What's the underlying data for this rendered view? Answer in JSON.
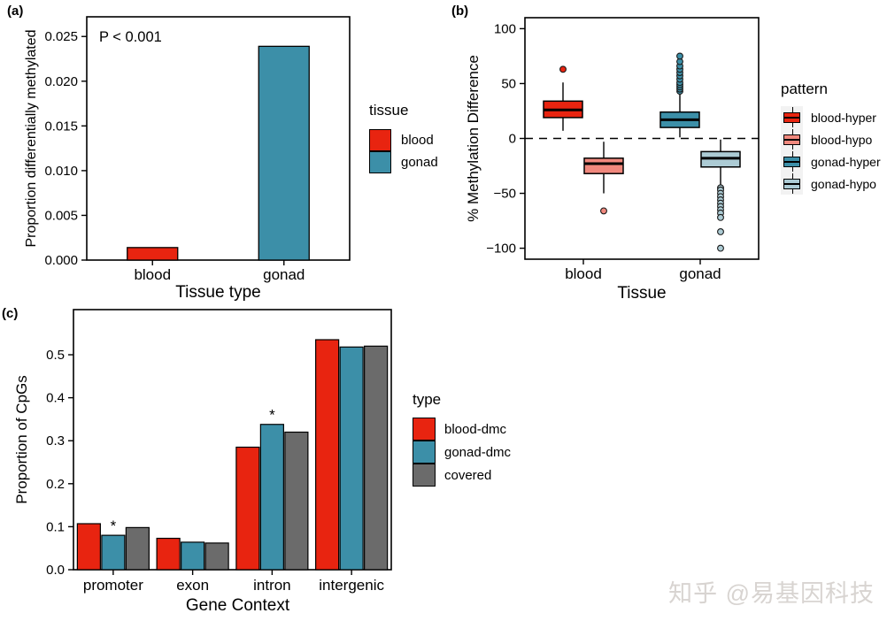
{
  "page": {
    "background": "#ffffff",
    "watermark": "知乎 @易基因科技"
  },
  "colors": {
    "red": "#E82410",
    "teal": "#3C8FA8",
    "salmon": "#F0887D",
    "lightblue": "#ACCBD4",
    "gray": "#6B6B6B",
    "legend_key_bg": "#F2F2F2"
  },
  "chart_data": [
    {
      "panel": "(a)",
      "type": "bar",
      "title": "",
      "annotation": "P < 0.001",
      "xlabel": "Tissue type",
      "ylabel": "Proportion differentially methylated",
      "categories": [
        "blood",
        "gonad"
      ],
      "values": [
        0.0014,
        0.0239
      ],
      "bar_colors": [
        "#E82410",
        "#3C8FA8"
      ],
      "ylim": [
        0,
        0.0272
      ],
      "yticks": [
        0.0,
        0.005,
        0.01,
        0.015,
        0.02,
        0.025
      ],
      "ytick_labels": [
        "0.000",
        "0.005",
        "0.010",
        "0.015",
        "0.020",
        "0.025"
      ],
      "grid": false,
      "legend": {
        "title": "tissue",
        "position": "right",
        "items": [
          {
            "label": "blood",
            "color": "#E82410"
          },
          {
            "label": "gonad",
            "color": "#3C8FA8"
          }
        ]
      }
    },
    {
      "panel": "(b)",
      "type": "boxplot",
      "title": "",
      "xlabel": "Tissue",
      "ylabel": "% Methylation Difference",
      "categories": [
        "blood",
        "gonad"
      ],
      "ylim": [
        -110,
        110
      ],
      "yticks": [
        100,
        50,
        0,
        -50,
        -100
      ],
      "ytick_labels": [
        "100",
        "50",
        "0",
        "−50",
        "−100"
      ],
      "zero_line_dashed": true,
      "grid": false,
      "boxes": [
        {
          "tissue": "blood",
          "pattern": "blood-hyper",
          "color": "#E82410",
          "whislo": 7,
          "q1": 19,
          "med": 26,
          "q3": 34,
          "whishi": 51,
          "outliers": [
            63
          ]
        },
        {
          "tissue": "blood",
          "pattern": "blood-hypo",
          "color": "#F0887D",
          "whislo": -50,
          "q1": -32,
          "med": -23,
          "q3": -18,
          "whishi": -3,
          "outliers": [
            -66
          ]
        },
        {
          "tissue": "gonad",
          "pattern": "gonad-hyper",
          "color": "#3C8FA8",
          "whislo": 1,
          "q1": 10,
          "med": 17,
          "q3": 24,
          "whishi": 40,
          "outliers": [
            43,
            45,
            47,
            49,
            51,
            54,
            57,
            60,
            63,
            66,
            70,
            75
          ]
        },
        {
          "tissue": "gonad",
          "pattern": "gonad-hypo",
          "color": "#ACCBD4",
          "whislo": -43,
          "q1": -26,
          "med": -18,
          "q3": -12,
          "whishi": -1,
          "outliers": [
            -45,
            -47,
            -50,
            -53,
            -56,
            -59,
            -62,
            -65,
            -68,
            -72,
            -85,
            -100
          ]
        }
      ],
      "legend": {
        "title": "pattern",
        "position": "right",
        "items": [
          {
            "label": "blood-hyper",
            "color": "#E82410"
          },
          {
            "label": "blood-hypo",
            "color": "#F0887D"
          },
          {
            "label": "gonad-hyper",
            "color": "#3C8FA8"
          },
          {
            "label": "gonad-hypo",
            "color": "#ACCBD4"
          }
        ]
      }
    },
    {
      "panel": "(c)",
      "type": "bar",
      "title": "",
      "xlabel": "Gene Context",
      "ylabel": "Proportion of CpGs",
      "categories": [
        "promoter",
        "exon",
        "intron",
        "intergenic"
      ],
      "series": [
        {
          "name": "blood-dmc",
          "color": "#E82410",
          "values": [
            0.107,
            0.073,
            0.285,
            0.535
          ]
        },
        {
          "name": "gonad-dmc",
          "color": "#3C8FA8",
          "values": [
            0.08,
            0.064,
            0.338,
            0.518
          ]
        },
        {
          "name": "covered",
          "color": "#6B6B6B",
          "values": [
            0.098,
            0.062,
            0.32,
            0.52
          ]
        }
      ],
      "significance": [
        {
          "category": "promoter",
          "series": "gonad-dmc",
          "symbol": "*"
        },
        {
          "category": "intron",
          "series": "gonad-dmc",
          "symbol": "*"
        }
      ],
      "ylim": [
        0,
        0.605
      ],
      "yticks": [
        0.0,
        0.1,
        0.2,
        0.3,
        0.4,
        0.5
      ],
      "ytick_labels": [
        "0.0",
        "0.1",
        "0.2",
        "0.3",
        "0.4",
        "0.5"
      ],
      "grid": false,
      "legend": {
        "title": "type",
        "position": "right",
        "items": [
          {
            "label": "blood-dmc",
            "color": "#E82410"
          },
          {
            "label": "gonad-dmc",
            "color": "#3C8FA8"
          },
          {
            "label": "covered",
            "color": "#6B6B6B"
          }
        ]
      }
    }
  ]
}
